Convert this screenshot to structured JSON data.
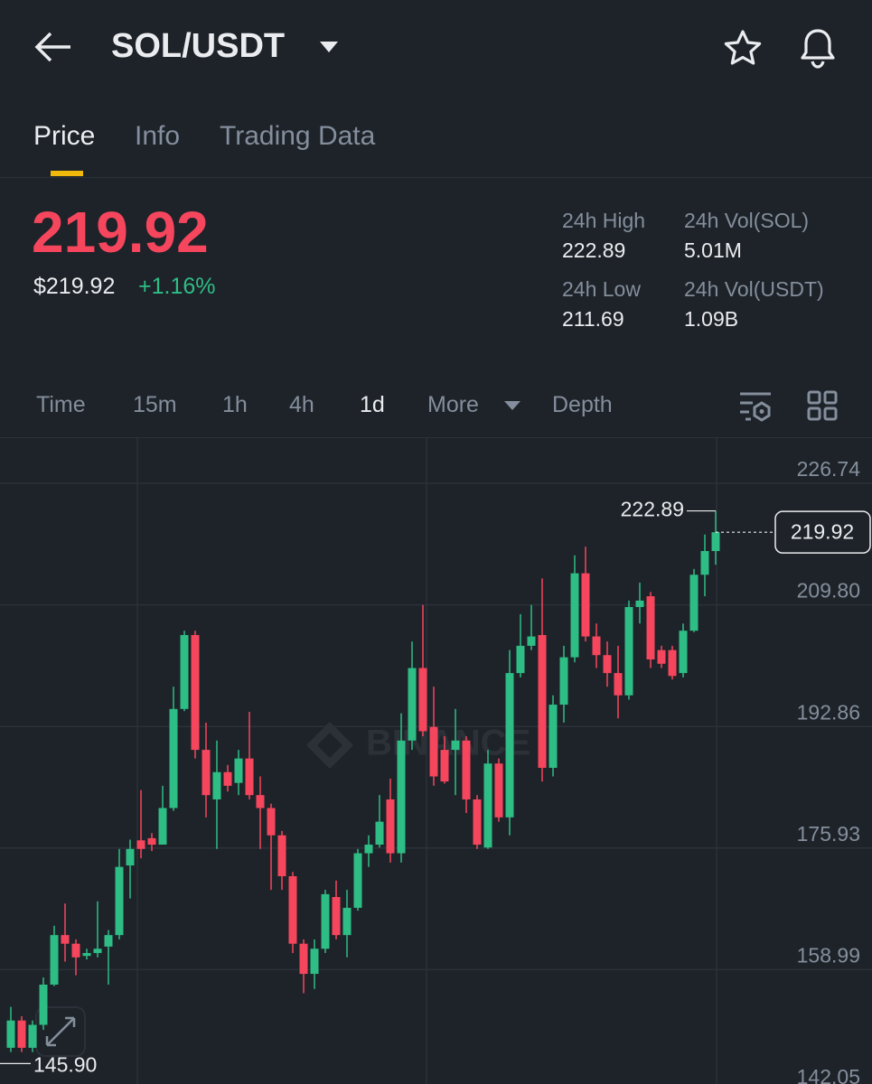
{
  "header": {
    "pair": "SOL/USDT"
  },
  "tabs": [
    "Price",
    "Info",
    "Trading Data"
  ],
  "price": {
    "last": "219.92",
    "usd": "$219.92",
    "change": "+1.16%"
  },
  "stats": [
    {
      "label": "24h High",
      "value": "222.89"
    },
    {
      "label": "24h Vol(SOL)",
      "value": "5.01M"
    },
    {
      "label": "24h Low",
      "value": "211.69"
    },
    {
      "label": "24h Vol(USDT)",
      "value": "1.09B"
    }
  ],
  "intervals": [
    "Time",
    "15m",
    "1h",
    "4h",
    "1d",
    "More",
    "Depth"
  ],
  "chart_data": {
    "type": "candlestick",
    "watermark": "BINANCE",
    "up_color": "#2ebd85",
    "down_color": "#f6465d",
    "ylim": [
      142.05,
      233.03
    ],
    "yticks": [
      226.74,
      {
        "value": 209.8,
        "label": "209.80"
      },
      192.86,
      175.93,
      158.99,
      142.05
    ],
    "grid": true,
    "high_marker": 222.89,
    "last_price": 219.92,
    "low_marker": {
      "value": 145.9,
      "label": "145.90"
    },
    "open": [
      148.1,
      151.9,
      148.1,
      151.3,
      156.9,
      163.8,
      162.6,
      160.9,
      161.3,
      162.2,
      163.8,
      173.5,
      177.0,
      177.3,
      176.4,
      181.5,
      195.3,
      205.6,
      189.6,
      182.7,
      186.5,
      185.0,
      188.4,
      183.3,
      181.5,
      177.7,
      172.0,
      162.6,
      158.4,
      161.9,
      169.1,
      163.8,
      167.6,
      175.2,
      176.4,
      182.7,
      175.2,
      190.9,
      201.0,
      192.8,
      189.6,
      189.6,
      190.9,
      182.7,
      176.0,
      187.7,
      180.2,
      200.3,
      204.1,
      205.6,
      187.1,
      195.9,
      202.5,
      214.2,
      205.4,
      202.8,
      200.3,
      197.2,
      209.5,
      211.0,
      203.5,
      203.5,
      200.3,
      206.2,
      214.0,
      217.3
    ],
    "high": [
      153.8,
      152.5,
      151.9,
      157.9,
      165.1,
      168.2,
      163.2,
      161.9,
      168.5,
      164.5,
      175.8,
      177.1,
      184.0,
      178.0,
      184.6,
      198.4,
      206.2,
      206.2,
      193.4,
      190.9,
      187.5,
      189.6,
      194.9,
      185.9,
      182.1,
      178.3,
      172.6,
      163.2,
      163.2,
      170.1,
      171.4,
      170.1,
      175.8,
      177.7,
      183.3,
      185.6,
      194.7,
      204.7,
      209.8,
      198.4,
      191.5,
      195.3,
      191.5,
      183.3,
      189.6,
      188.4,
      203.5,
      208.5,
      209.8,
      213.5,
      197.2,
      204.1,
      216.7,
      217.9,
      207.2,
      204.7,
      204.1,
      210.4,
      212.9,
      211.6,
      204.1,
      204.1,
      207.2,
      214.8,
      219.6,
      222.89
    ],
    "low": [
      147.5,
      147.5,
      147.5,
      150.6,
      156.7,
      160.1,
      158.2,
      160.4,
      160.7,
      156.9,
      163.2,
      168.9,
      174.5,
      175.5,
      176.4,
      181.1,
      195.0,
      188.4,
      180.2,
      175.8,
      183.8,
      183.3,
      182.7,
      175.8,
      170.1,
      170.1,
      161.3,
      155.7,
      156.3,
      161.3,
      163.2,
      160.7,
      167.2,
      173.3,
      176.0,
      173.9,
      173.9,
      189.6,
      191.5,
      184.6,
      184.9,
      183.3,
      180.8,
      175.8,
      175.8,
      179.6,
      177.7,
      199.7,
      203.5,
      185.2,
      185.9,
      193.4,
      201.8,
      204.7,
      201.0,
      198.4,
      194.0,
      196.6,
      207.2,
      201.0,
      201.0,
      199.4,
      199.7,
      206.0,
      211.0,
      215.4
    ],
    "close": [
      151.9,
      148.1,
      151.3,
      156.9,
      163.8,
      162.6,
      160.7,
      161.3,
      161.9,
      163.8,
      173.3,
      175.8,
      175.8,
      176.4,
      181.5,
      195.3,
      205.6,
      189.6,
      183.3,
      186.5,
      184.6,
      188.4,
      183.3,
      181.5,
      177.7,
      172.0,
      162.6,
      158.4,
      161.9,
      169.5,
      163.8,
      167.6,
      175.2,
      176.4,
      179.6,
      175.2,
      190.9,
      201.0,
      192.2,
      185.9,
      185.2,
      190.9,
      182.7,
      176.4,
      187.7,
      180.2,
      200.3,
      204.1,
      205.4,
      187.1,
      195.9,
      202.5,
      214.2,
      205.4,
      202.8,
      200.3,
      197.2,
      209.5,
      210.4,
      202.2,
      201.6,
      199.9,
      206.2,
      214.0,
      217.3,
      219.92
    ]
  }
}
